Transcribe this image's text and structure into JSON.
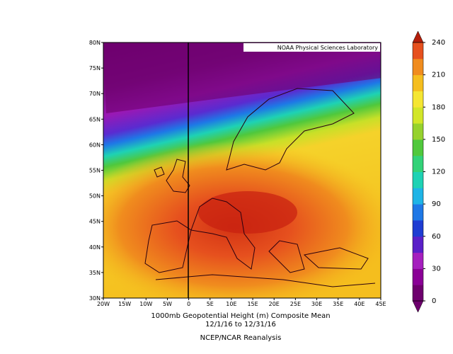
{
  "map": {
    "source_label": "NOAA Physical Sciences Laboratory",
    "title": "1000mb Geopotential Height (m) Composite Mean",
    "dates": "12/1/16  to 12/31/16",
    "dataset": "NCEP/NCAR Reanalysis",
    "lat_labels": [
      "30N",
      "35N",
      "40N",
      "45N",
      "50N",
      "55N",
      "60N",
      "65N",
      "70N",
      "75N",
      "80N"
    ],
    "lon_labels": [
      "20W",
      "15W",
      "10W",
      "5W",
      "0",
      "5E",
      "10E",
      "15E",
      "20E",
      "25E",
      "30E",
      "35E",
      "40E",
      "45E"
    ],
    "colorbar": {
      "range": [
        0,
        240
      ],
      "ticks": [
        0,
        30,
        60,
        90,
        120,
        150,
        180,
        210,
        240
      ],
      "colors": [
        "#6e006e",
        "#8a0096",
        "#a51fbe",
        "#5a1fc8",
        "#1e3cd2",
        "#1e78e6",
        "#1eb4e6",
        "#1ed2b4",
        "#32d278",
        "#50c83c",
        "#96d22d",
        "#d2e628",
        "#f5e632",
        "#f5be1e",
        "#f08c1e",
        "#e6501e"
      ]
    }
  }
}
